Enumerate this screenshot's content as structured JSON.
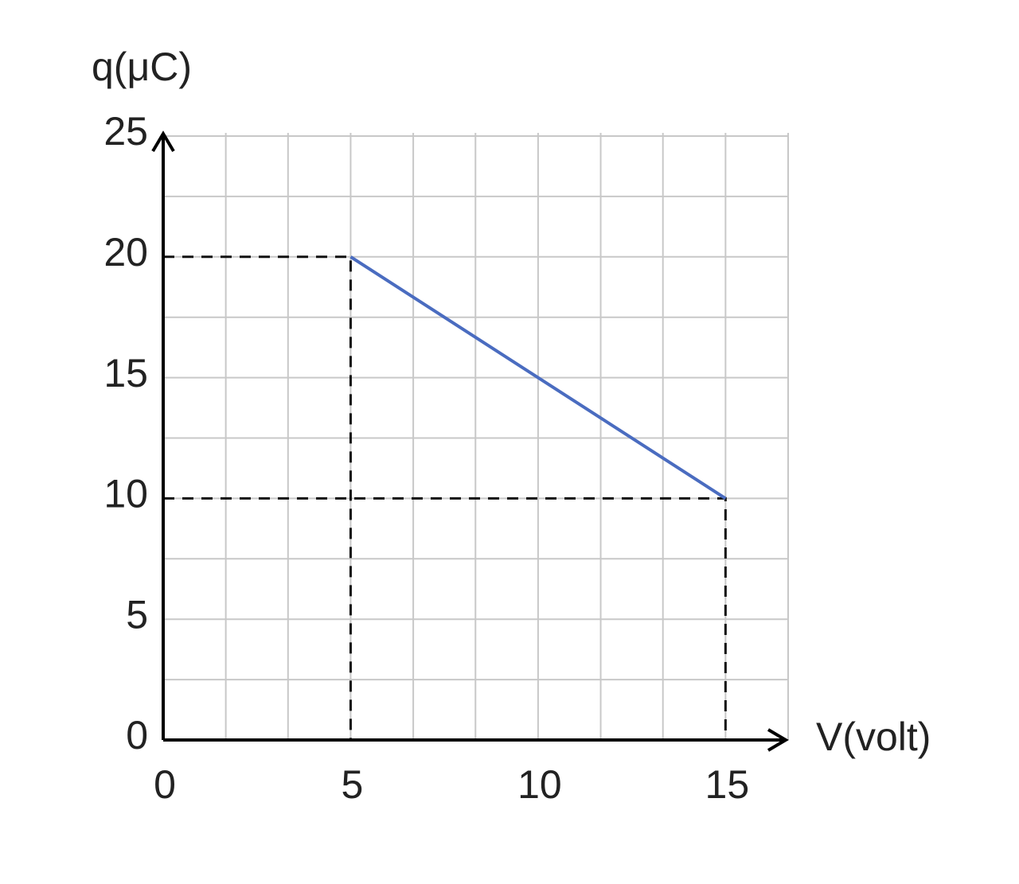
{
  "chart_data": {
    "type": "line",
    "x_label": "V(volt)",
    "y_label": "q(μC)",
    "x": [
      5,
      15
    ],
    "series": [
      {
        "color": "#4a6cc0",
        "values": [
          20,
          10
        ]
      }
    ],
    "xlim": [
      0,
      16.67
    ],
    "ylim": [
      0,
      25
    ],
    "xticks": [
      0,
      5,
      10,
      15
    ],
    "yticks": [
      0,
      5,
      10,
      15,
      20,
      25
    ],
    "xgrid": [
      0,
      1.67,
      3.33,
      5,
      6.67,
      8.33,
      10,
      11.67,
      13.33,
      15,
      16.67
    ],
    "ygrid": [
      0,
      2.5,
      5,
      7.5,
      10,
      12.5,
      15,
      17.5,
      20,
      22.5,
      25
    ],
    "grid": true,
    "guides": true
  }
}
